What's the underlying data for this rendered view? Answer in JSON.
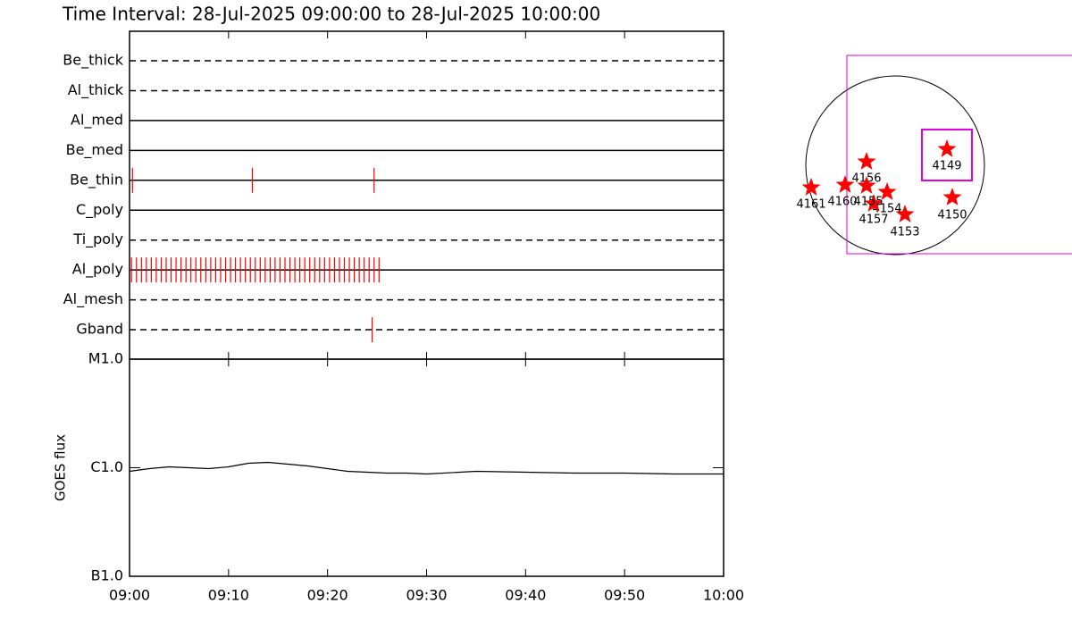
{
  "title": "Time Interval: 28-Jul-2025 09:00:00 to 28-Jul-2025 10:00:00",
  "chart_data": [
    {
      "type": "event",
      "categories": [
        "Be_thick",
        "Al_thick",
        "Al_med",
        "Be_med",
        "Be_thin",
        "C_poly",
        "Ti_poly",
        "Al_poly",
        "Al_mesh",
        "Gband"
      ],
      "line_styles": [
        "dashed",
        "dashed",
        "solid",
        "solid",
        "solid",
        "solid",
        "dashed",
        "solid",
        "dashed",
        "dashed"
      ],
      "events": [
        [],
        [],
        [],
        [],
        [
          0.3,
          12.4,
          24.7
        ],
        [],
        [],
        [
          0.2,
          0.7,
          1.2,
          1.7,
          2.2,
          2.7,
          3.2,
          3.7,
          4.2,
          4.7,
          5.2,
          5.7,
          6.2,
          6.7,
          7.2,
          7.7,
          8.2,
          8.7,
          9.2,
          9.7,
          10.2,
          10.7,
          11.2,
          11.7,
          12.2,
          12.7,
          13.2,
          13.7,
          14.2,
          14.7,
          15.2,
          15.7,
          16.2,
          16.7,
          17.2,
          17.7,
          18.2,
          18.7,
          19.2,
          19.7,
          20.2,
          20.7,
          21.2,
          21.7,
          22.2,
          22.7,
          23.2,
          23.7,
          24.2,
          24.7,
          25.2
        ],
        [],
        [
          24.5
        ]
      ],
      "xlim": [
        0,
        60
      ],
      "color": "#ff0000"
    },
    {
      "type": "line",
      "y_label": "GOES flux",
      "x": [
        0,
        2,
        4,
        6,
        8,
        10,
        12,
        14,
        16,
        18,
        20,
        22,
        24,
        26,
        28,
        30,
        35,
        40,
        45,
        50,
        55,
        60
      ],
      "values": [
        9.27e-07,
        9.81e-07,
        1.019e-06,
        1e-06,
        9.81e-07,
        1.019e-06,
        1.099e-06,
        1.12e-06,
        1.079e-06,
        1.039e-06,
        9.81e-07,
        9.27e-07,
        9.1e-07,
        8.93e-07,
        8.93e-07,
        8.76e-07,
        9.27e-07,
        9.1e-07,
        8.93e-07,
        8.93e-07,
        8.76e-07,
        8.76e-07
      ],
      "xlim": [
        0,
        60
      ],
      "xticks": [
        {
          "value": 0,
          "label": "09:00"
        },
        {
          "value": 10,
          "label": "09:10"
        },
        {
          "value": 20,
          "label": "09:20"
        },
        {
          "value": 30,
          "label": "09:30"
        },
        {
          "value": 40,
          "label": "09:40"
        },
        {
          "value": 50,
          "label": "09:50"
        },
        {
          "value": 60,
          "label": "10:00"
        }
      ],
      "ylim": [
        1e-07,
        1e-05
      ],
      "yticks": [
        {
          "value": 1e-05,
          "label": "M1.0"
        },
        {
          "value": 1e-06,
          "label": "C1.0"
        },
        {
          "value": 1e-07,
          "label": "B1.0"
        }
      ],
      "log_scale": true,
      "color": "#000000"
    }
  ],
  "sun_map": {
    "regions": [
      "4149",
      "4150",
      "4153",
      "4154",
      "4157",
      "4156",
      "4155",
      "4160",
      "4161"
    ]
  }
}
